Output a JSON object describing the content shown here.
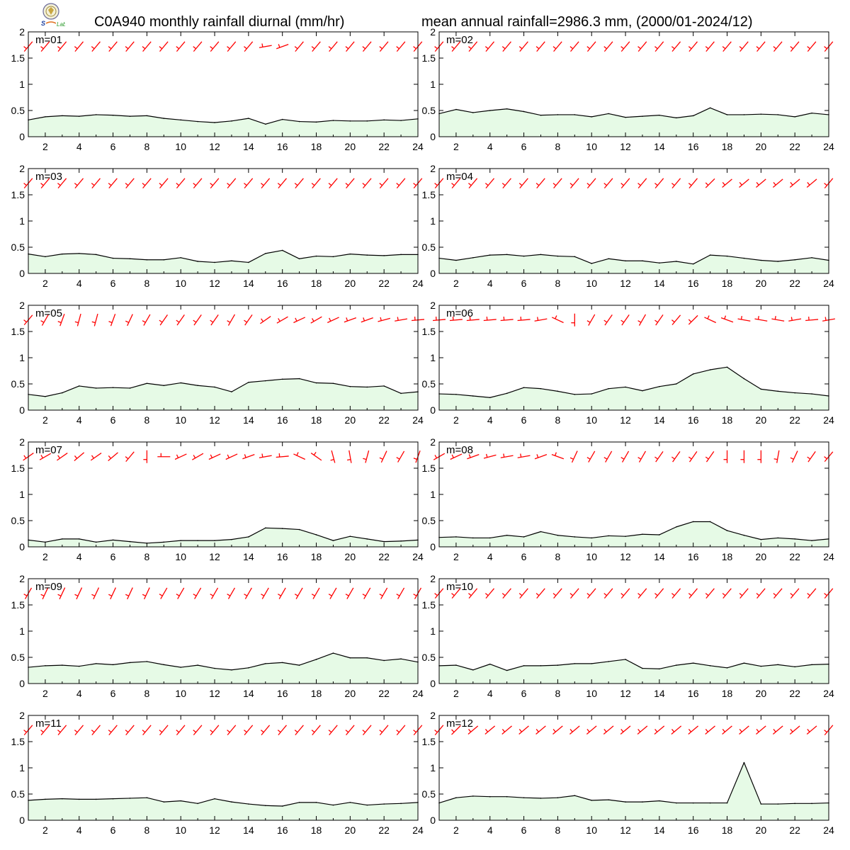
{
  "header": {
    "title_left": "C0A940 monthly rainfall diurnal (mm/hr)",
    "title_right": "mean annual rainfall=2986.3 mm, (2000/01-2024/12)"
  },
  "colors": {
    "wind": "#ff0000",
    "fill": "#e6fae6",
    "line": "#000000"
  },
  "chart_data": [
    {
      "type": "area",
      "label": "m=01",
      "x": [
        1,
        2,
        3,
        4,
        5,
        6,
        7,
        8,
        9,
        10,
        11,
        12,
        13,
        14,
        15,
        16,
        17,
        18,
        19,
        20,
        21,
        22,
        23,
        24
      ],
      "values": [
        0.32,
        0.38,
        0.4,
        0.39,
        0.42,
        0.41,
        0.39,
        0.4,
        0.35,
        0.32,
        0.29,
        0.27,
        0.3,
        0.35,
        0.24,
        0.33,
        0.29,
        0.28,
        0.31,
        0.3,
        0.3,
        0.32,
        0.31,
        0.34
      ],
      "wind_dir": [
        220,
        220,
        220,
        220,
        220,
        220,
        220,
        220,
        220,
        220,
        220,
        220,
        220,
        220,
        260,
        250,
        220,
        220,
        220,
        220,
        220,
        220,
        220,
        220
      ],
      "xlim": [
        1,
        24
      ],
      "ylim": [
        0,
        2
      ],
      "xticks": [
        2,
        4,
        6,
        8,
        10,
        12,
        14,
        16,
        18,
        20,
        22,
        24
      ],
      "yticks": [
        0,
        0.5,
        1,
        1.5,
        2
      ]
    },
    {
      "type": "area",
      "label": "m=02",
      "x": [
        1,
        2,
        3,
        4,
        5,
        6,
        7,
        8,
        9,
        10,
        11,
        12,
        13,
        14,
        15,
        16,
        17,
        18,
        19,
        20,
        21,
        22,
        23,
        24
      ],
      "values": [
        0.44,
        0.52,
        0.46,
        0.5,
        0.53,
        0.48,
        0.41,
        0.42,
        0.42,
        0.38,
        0.44,
        0.37,
        0.39,
        0.41,
        0.36,
        0.4,
        0.55,
        0.42,
        0.42,
        0.43,
        0.42,
        0.38,
        0.45,
        0.42
      ],
      "wind_dir": [
        220,
        220,
        220,
        220,
        220,
        220,
        220,
        220,
        220,
        220,
        220,
        220,
        220,
        220,
        220,
        220,
        220,
        220,
        220,
        220,
        220,
        220,
        220,
        220
      ],
      "xlim": [
        1,
        24
      ],
      "ylim": [
        0,
        2
      ],
      "xticks": [
        2,
        4,
        6,
        8,
        10,
        12,
        14,
        16,
        18,
        20,
        22,
        24
      ],
      "yticks": [
        0,
        0.5,
        1,
        1.5,
        2
      ]
    },
    {
      "type": "area",
      "label": "m=03",
      "x": [
        1,
        2,
        3,
        4,
        5,
        6,
        7,
        8,
        9,
        10,
        11,
        12,
        13,
        14,
        15,
        16,
        17,
        18,
        19,
        20,
        21,
        22,
        23,
        24
      ],
      "values": [
        0.37,
        0.32,
        0.37,
        0.38,
        0.36,
        0.29,
        0.28,
        0.26,
        0.26,
        0.3,
        0.23,
        0.21,
        0.24,
        0.21,
        0.38,
        0.44,
        0.28,
        0.33,
        0.32,
        0.37,
        0.35,
        0.34,
        0.36,
        0.36
      ],
      "wind_dir": [
        220,
        220,
        220,
        220,
        220,
        220,
        220,
        220,
        220,
        220,
        220,
        220,
        220,
        220,
        220,
        220,
        220,
        220,
        220,
        220,
        220,
        220,
        220,
        220
      ],
      "xlim": [
        1,
        24
      ],
      "ylim": [
        0,
        2
      ],
      "xticks": [
        2,
        4,
        6,
        8,
        10,
        12,
        14,
        16,
        18,
        20,
        22,
        24
      ],
      "yticks": [
        0,
        0.5,
        1,
        1.5,
        2
      ]
    },
    {
      "type": "area",
      "label": "m=04",
      "x": [
        1,
        2,
        3,
        4,
        5,
        6,
        7,
        8,
        9,
        10,
        11,
        12,
        13,
        14,
        15,
        16,
        17,
        18,
        19,
        20,
        21,
        22,
        23,
        24
      ],
      "values": [
        0.29,
        0.25,
        0.3,
        0.35,
        0.36,
        0.33,
        0.36,
        0.33,
        0.32,
        0.19,
        0.28,
        0.24,
        0.24,
        0.2,
        0.23,
        0.18,
        0.35,
        0.33,
        0.29,
        0.25,
        0.23,
        0.26,
        0.3,
        0.25
      ],
      "wind_dir": [
        220,
        220,
        220,
        220,
        220,
        220,
        220,
        220,
        220,
        220,
        220,
        220,
        220,
        220,
        220,
        220,
        225,
        230,
        230,
        230,
        230,
        230,
        230,
        220
      ],
      "xlim": [
        1,
        24
      ],
      "ylim": [
        0,
        2
      ],
      "xticks": [
        2,
        4,
        6,
        8,
        10,
        12,
        14,
        16,
        18,
        20,
        22,
        24
      ],
      "yticks": [
        0,
        0.5,
        1,
        1.5,
        2
      ]
    },
    {
      "type": "area",
      "label": "m=05",
      "x": [
        1,
        2,
        3,
        4,
        5,
        6,
        7,
        8,
        9,
        10,
        11,
        12,
        13,
        14,
        15,
        16,
        17,
        18,
        19,
        20,
        21,
        22,
        23,
        24
      ],
      "values": [
        0.3,
        0.26,
        0.33,
        0.46,
        0.42,
        0.43,
        0.42,
        0.51,
        0.47,
        0.52,
        0.47,
        0.44,
        0.35,
        0.53,
        0.56,
        0.59,
        0.6,
        0.52,
        0.51,
        0.45,
        0.44,
        0.46,
        0.32,
        0.35
      ],
      "wind_dir": [
        220,
        210,
        200,
        195,
        195,
        200,
        205,
        210,
        215,
        215,
        215,
        215,
        210,
        215,
        235,
        240,
        245,
        240,
        245,
        250,
        250,
        255,
        260,
        265
      ],
      "xlim": [
        1,
        24
      ],
      "ylim": [
        0,
        2
      ],
      "xticks": [
        2,
        4,
        6,
        8,
        10,
        12,
        14,
        16,
        18,
        20,
        22,
        24
      ],
      "yticks": [
        0,
        0.5,
        1,
        1.5,
        2
      ]
    },
    {
      "type": "area",
      "label": "m=06",
      "x": [
        1,
        2,
        3,
        4,
        5,
        6,
        7,
        8,
        9,
        10,
        11,
        12,
        13,
        14,
        15,
        16,
        17,
        18,
        19,
        20,
        21,
        22,
        23,
        24
      ],
      "values": [
        0.31,
        0.3,
        0.27,
        0.24,
        0.32,
        0.43,
        0.41,
        0.36,
        0.3,
        0.31,
        0.41,
        0.44,
        0.37,
        0.45,
        0.5,
        0.69,
        0.77,
        0.82,
        0.6,
        0.4,
        0.36,
        0.33,
        0.31,
        0.27
      ],
      "wind_dir": [
        265,
        265,
        265,
        265,
        265,
        265,
        260,
        295,
        180,
        210,
        215,
        215,
        210,
        215,
        220,
        225,
        295,
        290,
        280,
        280,
        280,
        260,
        265,
        260
      ],
      "xlim": [
        1,
        24
      ],
      "ylim": [
        0,
        2
      ],
      "xticks": [
        2,
        4,
        6,
        8,
        10,
        12,
        14,
        16,
        18,
        20,
        22,
        24
      ],
      "yticks": [
        0,
        0.5,
        1,
        1.5,
        2
      ]
    },
    {
      "type": "area",
      "label": "m=07",
      "x": [
        1,
        2,
        3,
        4,
        5,
        6,
        7,
        8,
        9,
        10,
        11,
        12,
        13,
        14,
        15,
        16,
        17,
        18,
        19,
        20,
        21,
        22,
        23,
        24
      ],
      "values": [
        0.13,
        0.09,
        0.15,
        0.15,
        0.09,
        0.13,
        0.1,
        0.07,
        0.09,
        0.12,
        0.12,
        0.12,
        0.14,
        0.19,
        0.36,
        0.35,
        0.33,
        0.23,
        0.12,
        0.2,
        0.15,
        0.1,
        0.11,
        0.13
      ],
      "wind_dir": [
        235,
        240,
        235,
        230,
        235,
        230,
        220,
        180,
        270,
        245,
        240,
        245,
        245,
        250,
        260,
        265,
        295,
        305,
        165,
        170,
        195,
        205,
        210,
        200
      ],
      "xlim": [
        1,
        24
      ],
      "ylim": [
        0,
        2
      ],
      "xticks": [
        2,
        4,
        6,
        8,
        10,
        12,
        14,
        16,
        18,
        20,
        22,
        24
      ],
      "yticks": [
        0,
        0.5,
        1,
        1.5,
        2
      ]
    },
    {
      "type": "area",
      "label": "m=08",
      "x": [
        1,
        2,
        3,
        4,
        5,
        6,
        7,
        8,
        9,
        10,
        11,
        12,
        13,
        14,
        15,
        16,
        17,
        18,
        19,
        20,
        21,
        22,
        23,
        24
      ],
      "values": [
        0.18,
        0.19,
        0.17,
        0.17,
        0.22,
        0.19,
        0.29,
        0.22,
        0.19,
        0.17,
        0.21,
        0.2,
        0.24,
        0.23,
        0.38,
        0.48,
        0.48,
        0.31,
        0.22,
        0.14,
        0.17,
        0.15,
        0.12,
        0.15
      ],
      "wind_dir": [
        240,
        245,
        250,
        255,
        260,
        260,
        250,
        290,
        205,
        210,
        210,
        210,
        210,
        215,
        215,
        215,
        215,
        180,
        180,
        180,
        190,
        205,
        215,
        220
      ],
      "xlim": [
        1,
        24
      ],
      "ylim": [
        0,
        2
      ],
      "xticks": [
        2,
        4,
        6,
        8,
        10,
        12,
        14,
        16,
        18,
        20,
        22,
        24
      ],
      "yticks": [
        0,
        0.5,
        1,
        1.5,
        2
      ]
    },
    {
      "type": "area",
      "label": "m=09",
      "x": [
        1,
        2,
        3,
        4,
        5,
        6,
        7,
        8,
        9,
        10,
        11,
        12,
        13,
        14,
        15,
        16,
        17,
        18,
        19,
        20,
        21,
        22,
        23,
        24
      ],
      "values": [
        0.31,
        0.34,
        0.35,
        0.33,
        0.38,
        0.36,
        0.4,
        0.42,
        0.36,
        0.31,
        0.35,
        0.29,
        0.26,
        0.3,
        0.38,
        0.4,
        0.35,
        0.46,
        0.58,
        0.49,
        0.49,
        0.44,
        0.47,
        0.41
      ],
      "wind_dir": [
        210,
        205,
        205,
        205,
        205,
        205,
        205,
        205,
        210,
        210,
        210,
        210,
        210,
        210,
        210,
        210,
        210,
        210,
        210,
        210,
        210,
        210,
        210,
        210
      ],
      "xlim": [
        1,
        24
      ],
      "ylim": [
        0,
        2
      ],
      "xticks": [
        2,
        4,
        6,
        8,
        10,
        12,
        14,
        16,
        18,
        20,
        22,
        24
      ],
      "yticks": [
        0,
        0.5,
        1,
        1.5,
        2
      ]
    },
    {
      "type": "area",
      "label": "m=10",
      "x": [
        1,
        2,
        3,
        4,
        5,
        6,
        7,
        8,
        9,
        10,
        11,
        12,
        13,
        14,
        15,
        16,
        17,
        18,
        19,
        20,
        21,
        22,
        23,
        24
      ],
      "values": [
        0.34,
        0.35,
        0.26,
        0.37,
        0.25,
        0.34,
        0.34,
        0.35,
        0.38,
        0.38,
        0.42,
        0.46,
        0.29,
        0.28,
        0.35,
        0.39,
        0.34,
        0.3,
        0.39,
        0.33,
        0.36,
        0.32,
        0.36,
        0.37
      ],
      "wind_dir": [
        220,
        220,
        220,
        220,
        220,
        220,
        220,
        220,
        220,
        220,
        220,
        220,
        220,
        220,
        220,
        220,
        220,
        220,
        220,
        220,
        220,
        220,
        220,
        220
      ],
      "xlim": [
        1,
        24
      ],
      "ylim": [
        0,
        2
      ],
      "xticks": [
        2,
        4,
        6,
        8,
        10,
        12,
        14,
        16,
        18,
        20,
        22,
        24
      ],
      "yticks": [
        0,
        0.5,
        1,
        1.5,
        2
      ]
    },
    {
      "type": "area",
      "label": "m=11",
      "x": [
        1,
        2,
        3,
        4,
        5,
        6,
        7,
        8,
        9,
        10,
        11,
        12,
        13,
        14,
        15,
        16,
        17,
        18,
        19,
        20,
        21,
        22,
        23,
        24
      ],
      "values": [
        0.38,
        0.4,
        0.41,
        0.4,
        0.4,
        0.41,
        0.42,
        0.43,
        0.35,
        0.37,
        0.32,
        0.41,
        0.35,
        0.31,
        0.28,
        0.27,
        0.34,
        0.34,
        0.29,
        0.34,
        0.29,
        0.31,
        0.32,
        0.34
      ],
      "wind_dir": [
        220,
        220,
        220,
        220,
        220,
        220,
        220,
        220,
        220,
        220,
        220,
        220,
        220,
        220,
        220,
        220,
        220,
        220,
        220,
        220,
        220,
        220,
        220,
        220
      ],
      "xlim": [
        1,
        24
      ],
      "ylim": [
        0,
        2
      ],
      "xticks": [
        2,
        4,
        6,
        8,
        10,
        12,
        14,
        16,
        18,
        20,
        22,
        24
      ],
      "yticks": [
        0,
        0.5,
        1,
        1.5,
        2
      ]
    },
    {
      "type": "area",
      "label": "m=12",
      "x": [
        1,
        2,
        3,
        4,
        5,
        6,
        7,
        8,
        9,
        10,
        11,
        12,
        13,
        14,
        15,
        16,
        17,
        18,
        19,
        20,
        21,
        22,
        23,
        24
      ],
      "values": [
        0.33,
        0.43,
        0.46,
        0.45,
        0.45,
        0.43,
        0.42,
        0.43,
        0.47,
        0.38,
        0.39,
        0.35,
        0.35,
        0.37,
        0.33,
        0.33,
        0.33,
        0.33,
        1.1,
        0.31,
        0.31,
        0.32,
        0.32,
        0.33
      ],
      "wind_dir": [
        220,
        225,
        230,
        230,
        230,
        230,
        230,
        230,
        230,
        230,
        230,
        230,
        230,
        230,
        230,
        230,
        230,
        230,
        230,
        230,
        230,
        230,
        230,
        220
      ],
      "xlim": [
        1,
        24
      ],
      "ylim": [
        0,
        2
      ],
      "xticks": [
        2,
        4,
        6,
        8,
        10,
        12,
        14,
        16,
        18,
        20,
        22,
        24
      ],
      "yticks": [
        0,
        0.5,
        1,
        1.5,
        2
      ]
    }
  ]
}
